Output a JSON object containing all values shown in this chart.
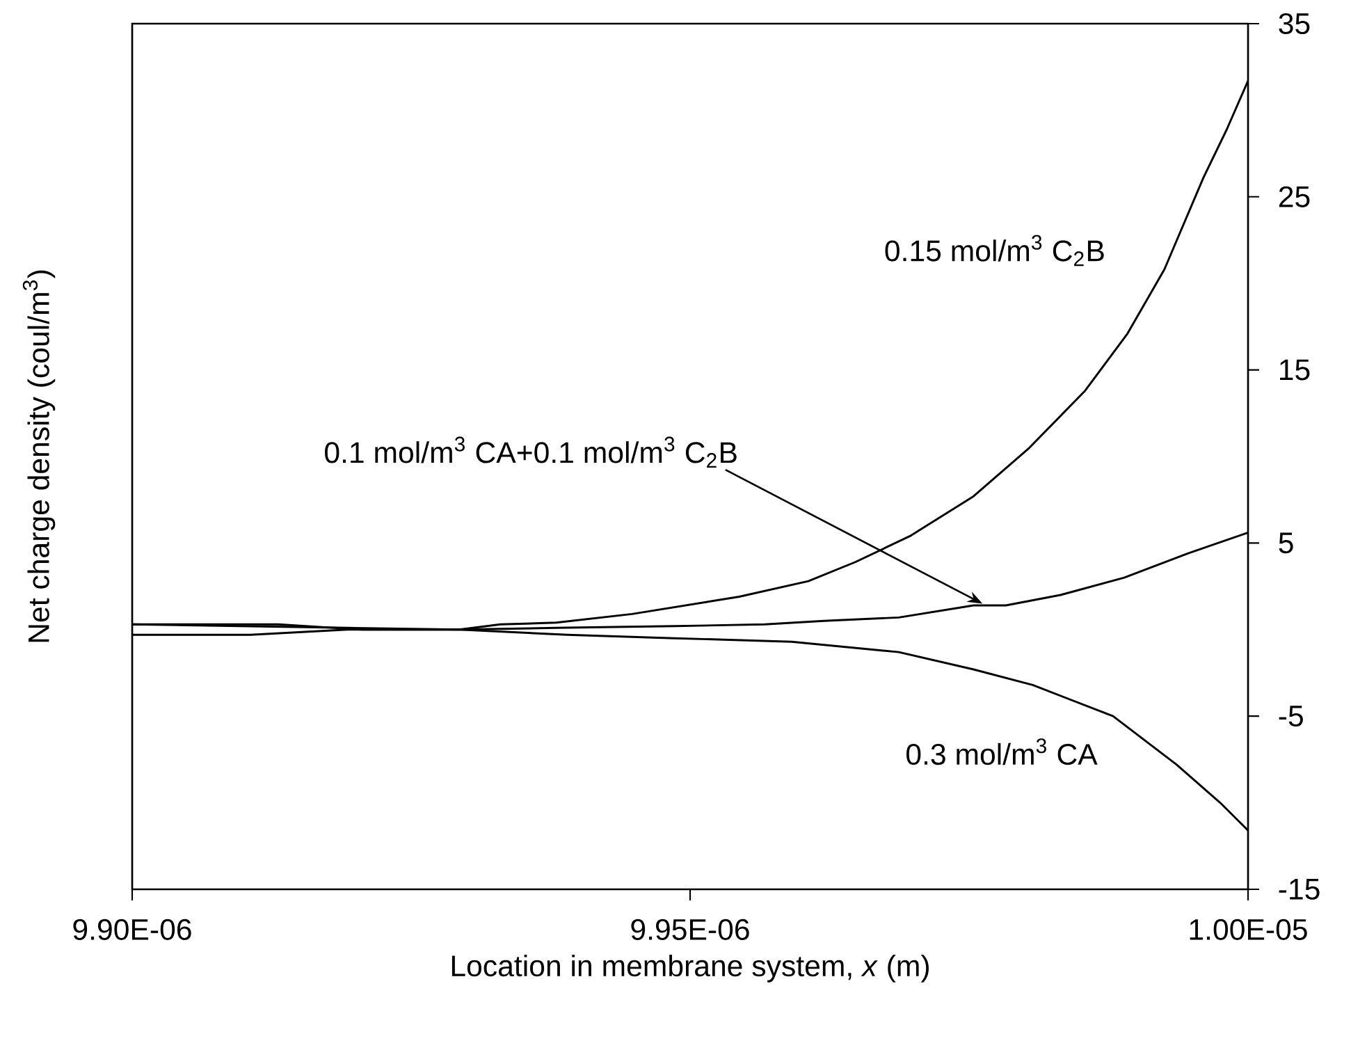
{
  "chart_data": {
    "type": "line",
    "xlabel": "Location in membrane system, *x* (m)",
    "ylabel": "Net charge density (coul/m$^{3}$)",
    "xlim": [
      9.9e-06,
      1e-05
    ],
    "ylim": [
      -15,
      35
    ],
    "xticks": [
      {
        "value": 9.9e-06,
        "label": "9.90E-06"
      },
      {
        "value": 9.95e-06,
        "label": "9.95E-06"
      },
      {
        "value": 1e-05,
        "label": "1.00E-05"
      }
    ],
    "yticks": [
      -15,
      -5,
      5,
      15,
      25,
      35
    ],
    "annotations": [
      {
        "text": "0.1 mol/m$^{3}$ CA+0.1 mol/m$^{3}$ C$_{2}$B",
        "x": 9.9762e-06,
        "y": 1.5
      }
    ],
    "grid": false,
    "legend": false,
    "marker": "none",
    "line_style": "solid",
    "series": [
      {
        "name": "0.15 mol/m$^{3}$ C$_{2}$B",
        "color": "#000000",
        "x": [
          9.9e-06,
          9.9131e-06,
          9.9206e-06,
          9.9293e-06,
          9.933e-06,
          9.938e-06,
          9.9448e-06,
          9.9544e-06,
          9.9606e-06,
          9.9648e-06,
          9.9697e-06,
          9.9754e-06,
          9.9804e-06,
          9.9854e-06,
          9.9892e-06,
          9.9925e-06,
          9.996e-06,
          9.9981e-06,
          1e-05
        ],
        "values": [
          0.3,
          0.3,
          0,
          0,
          0.3,
          0.4,
          0.9,
          1.9,
          2.8,
          3.9,
          5.4,
          7.7,
          10.5,
          13.8,
          17.1,
          20.8,
          26.1,
          28.9,
          31.7
        ]
      },
      {
        "color": "#000000",
        "x": [
          9.9e-06,
          9.9193e-06,
          9.9293e-06,
          9.938e-06,
          9.9486e-06,
          9.9567e-06,
          9.962e-06,
          9.9687e-06,
          9.9754e-06,
          9.9783e-06,
          9.9832e-06,
          9.9889e-06,
          9.9946e-06,
          1e-05
        ],
        "values": [
          0.3,
          0.1,
          0,
          0.1,
          0.2,
          0.3,
          0.5,
          0.7,
          1.4,
          1.4,
          2.0,
          3.0,
          4.4,
          5.6
        ]
      },
      {
        "name": "0.3 mol/m$^{3}$ CA",
        "color": "#000000",
        "x": [
          9.9e-06,
          9.9106e-06,
          9.9193e-06,
          9.9293e-06,
          9.939e-06,
          9.9486e-06,
          9.9591e-06,
          9.9687e-06,
          9.9754e-06,
          9.9807e-06,
          9.9879e-06,
          9.9936e-06,
          9.9975e-06,
          1e-05
        ],
        "values": [
          -0.3,
          -0.3,
          0,
          0,
          -0.3,
          -0.5,
          -0.7,
          -1.3,
          -2.3,
          -3.2,
          -5.0,
          -7.8,
          -10.0,
          -11.6
        ]
      }
    ]
  }
}
